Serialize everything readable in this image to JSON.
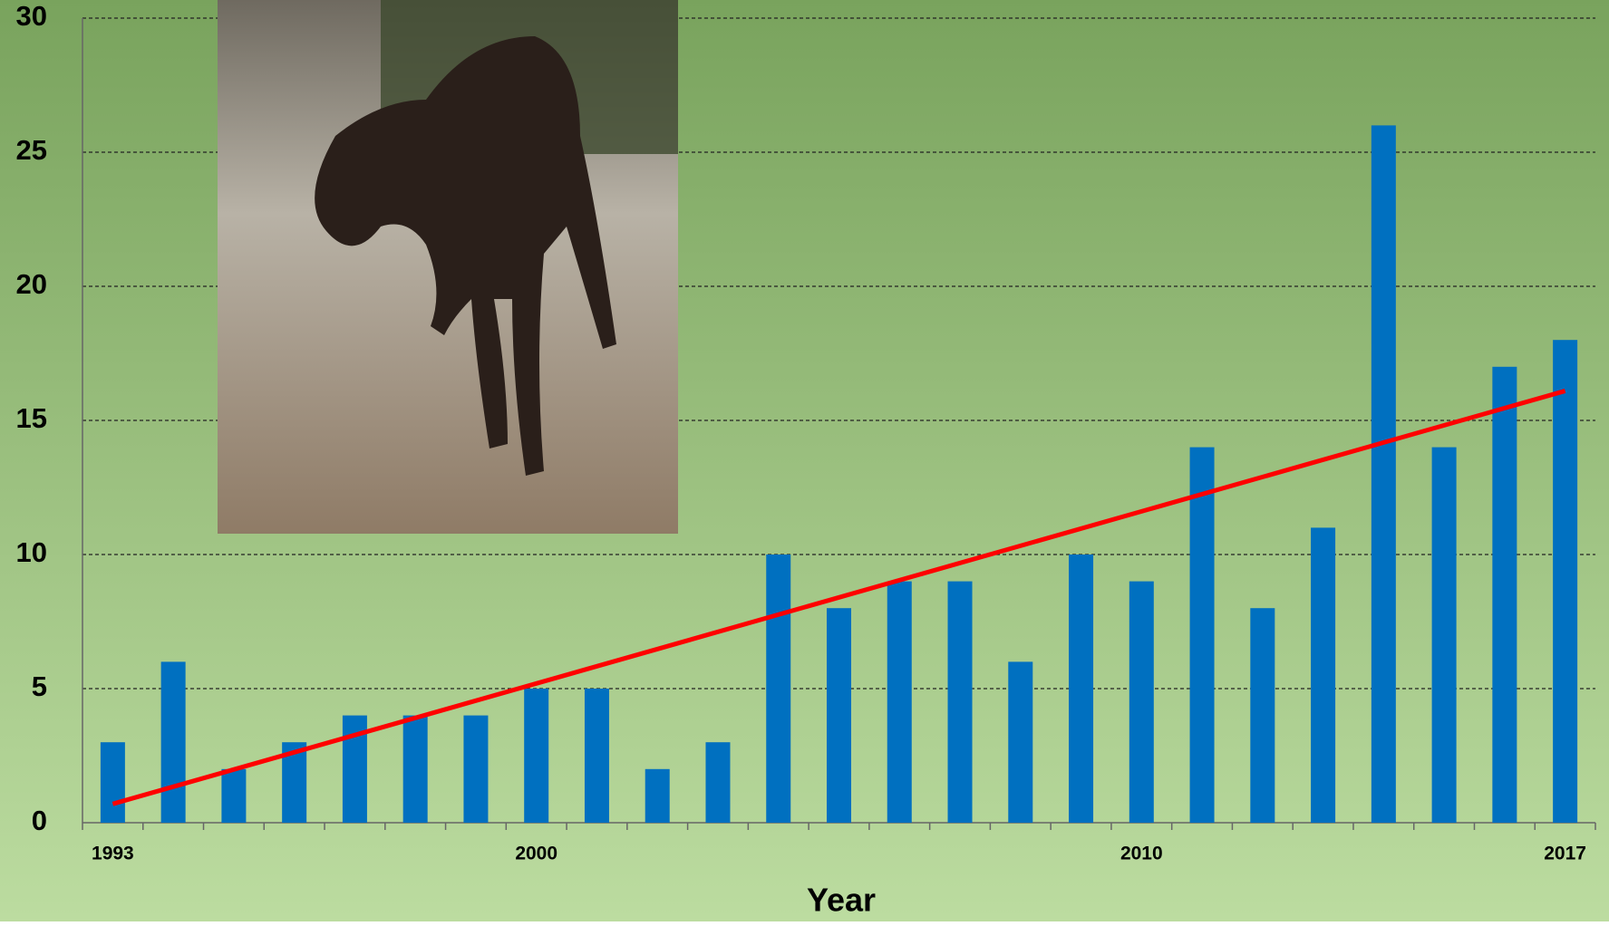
{
  "chart_data": {
    "type": "bar",
    "x_label": "Year",
    "categories": [
      "1993",
      null,
      null,
      null,
      null,
      null,
      null,
      "2000",
      null,
      null,
      null,
      null,
      null,
      null,
      null,
      null,
      null,
      "2010",
      null,
      null,
      null,
      null,
      null,
      null,
      "2017"
    ],
    "values": [
      3,
      6,
      2,
      3,
      4,
      4,
      4,
      5,
      5,
      2,
      3,
      10,
      8,
      9,
      9,
      6,
      10,
      9,
      14,
      8,
      11,
      26,
      14,
      17,
      18
    ],
    "color": "#0070c0",
    "trendline": {
      "color": "#ff0000",
      "values": [
        0.7,
        16.1
      ]
    },
    "ylim": [
      0,
      30
    ],
    "yticks": [
      0,
      5,
      10,
      15,
      20,
      25,
      30
    ],
    "grid": true
  }
}
